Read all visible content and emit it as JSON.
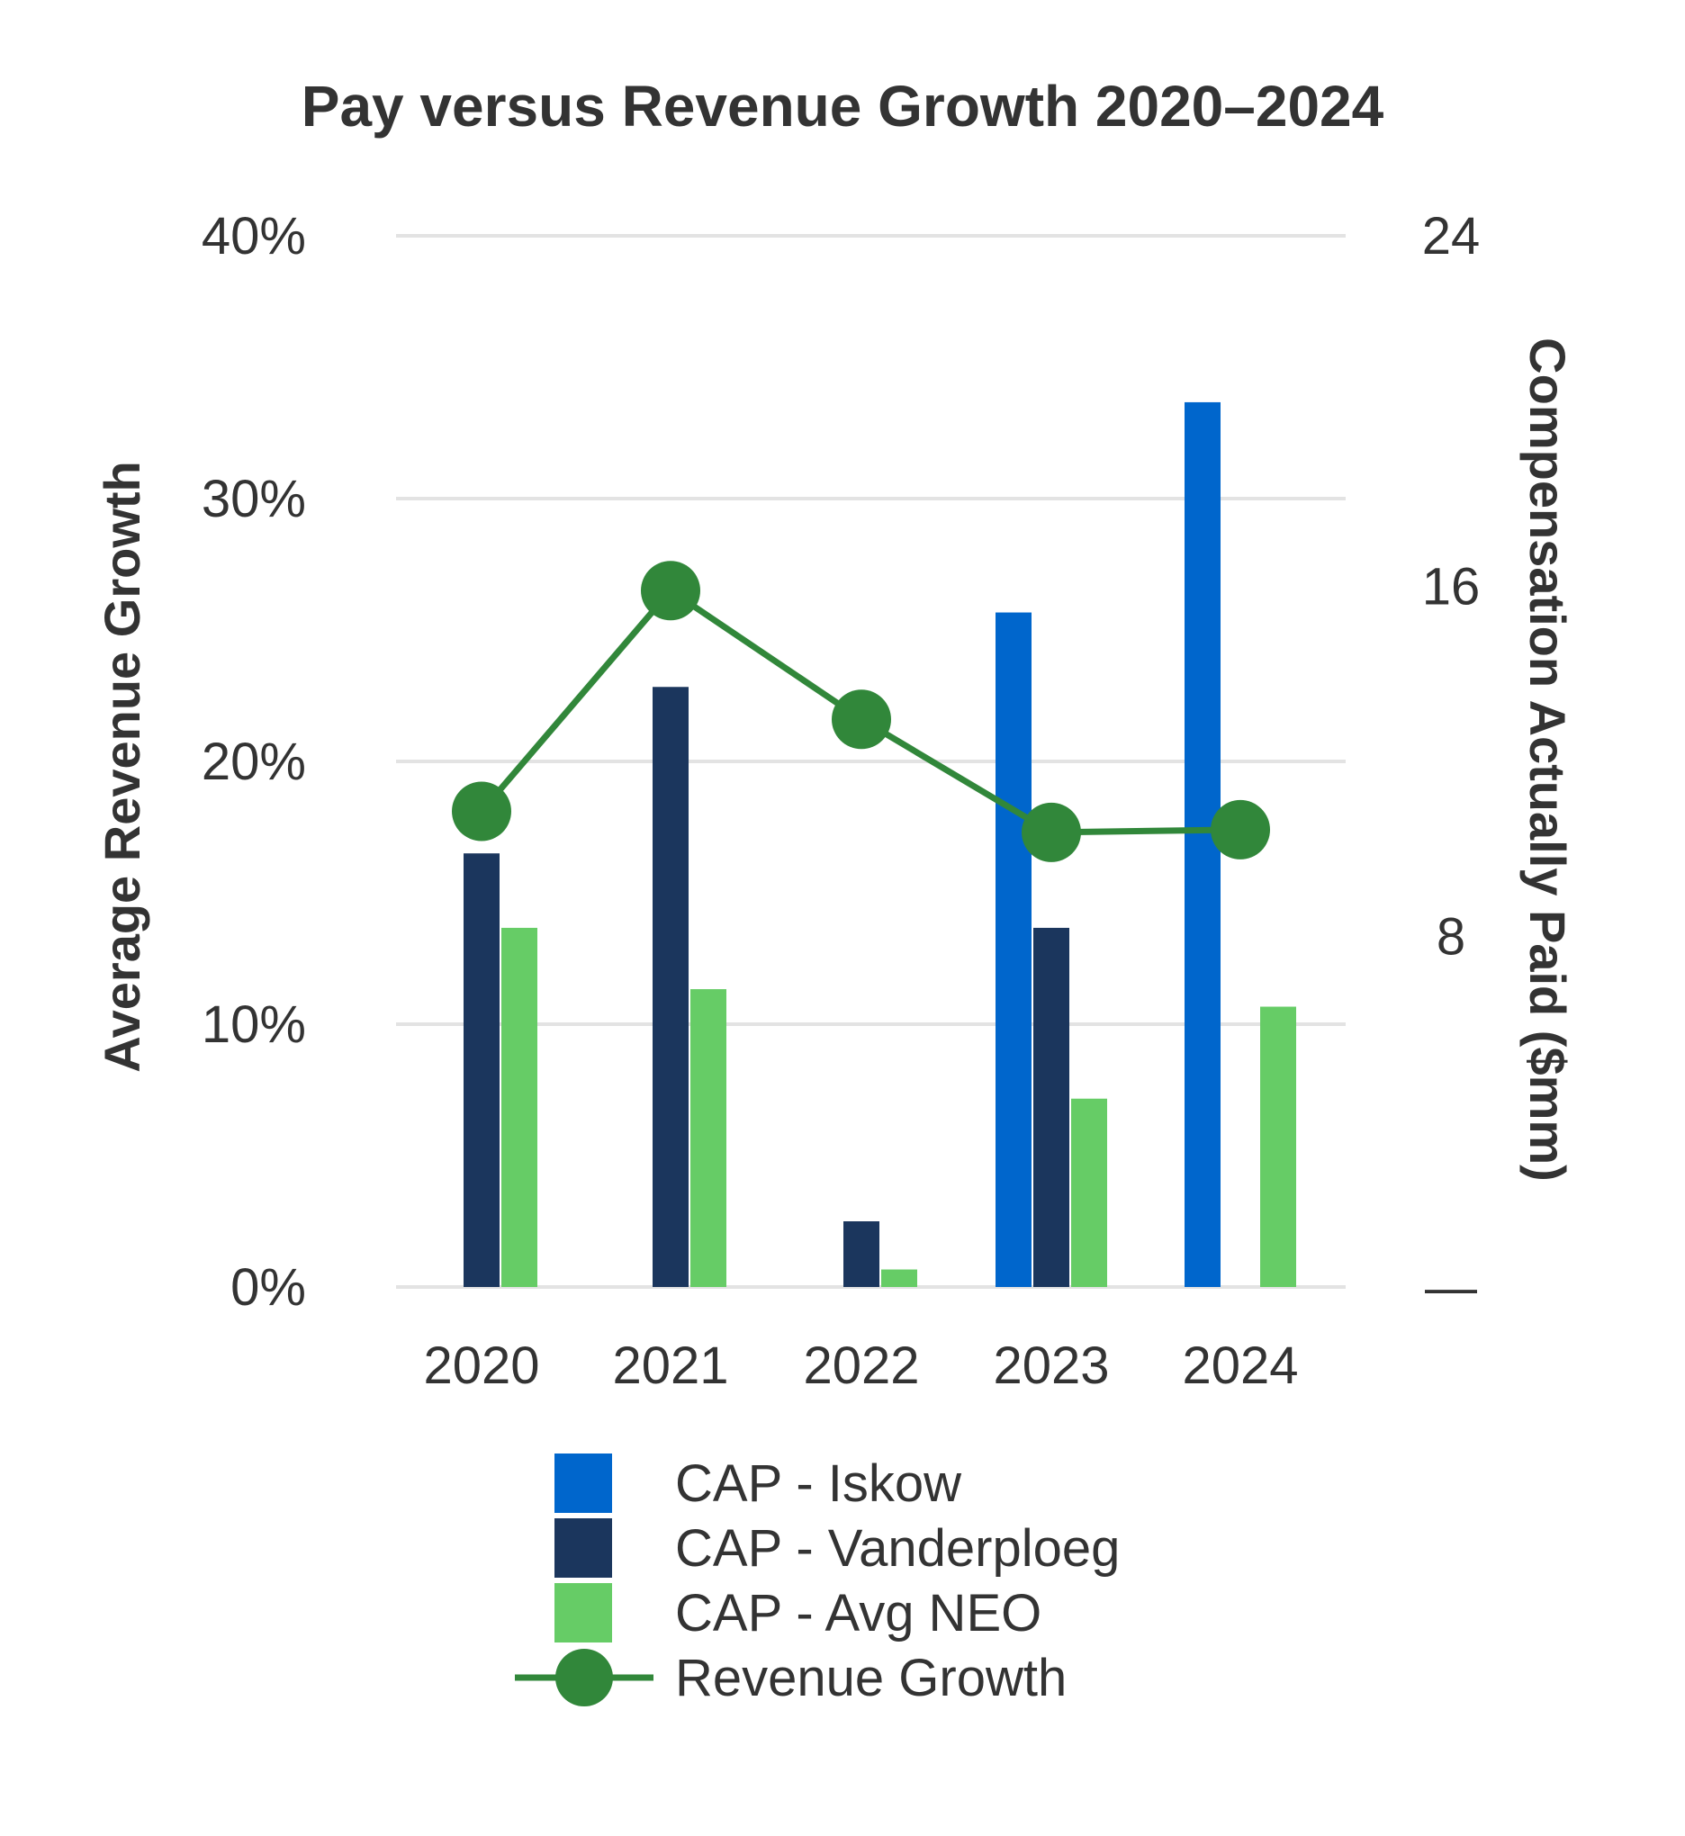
{
  "chart_data": {
    "type": "bar",
    "title": "Pay versus Revenue Growth 2020–2024",
    "categories": [
      "2020",
      "2021",
      "2022",
      "2023",
      "2024"
    ],
    "y_left": {
      "label": "Average Revenue Growth",
      "ticks": [
        "0%",
        "10%",
        "20%",
        "30%",
        "40%"
      ],
      "tick_values": [
        0,
        10,
        20,
        30,
        40
      ],
      "ylim": [
        0,
        40
      ]
    },
    "y_right": {
      "label": "Compensation Actually Paid ($mm)",
      "ticks": [
        "—",
        "8",
        "16",
        "24"
      ],
      "tick_values": [
        0,
        8,
        16,
        24
      ],
      "ylim": [
        0,
        24
      ]
    },
    "bar_series": [
      {
        "name": "CAP - Iskow",
        "color": "#0066CC",
        "values": [
          0,
          0,
          0,
          15.4,
          20.2
        ]
      },
      {
        "name": "CAP - Vanderploeg",
        "color": "#1B365D",
        "values": [
          9.9,
          13.7,
          1.5,
          8.2,
          0
        ]
      },
      {
        "name": "CAP - Avg NEO",
        "color": "#66CC66",
        "values": [
          8.2,
          6.8,
          0.4,
          4.3,
          6.4
        ]
      }
    ],
    "line_series": {
      "name": "Revenue Growth",
      "color": "#31873A",
      "values": [
        18.1,
        26.5,
        21.6,
        17.3,
        17.4
      ]
    },
    "legend": {
      "position": "bottom",
      "entries": [
        "CAP - Iskow",
        "CAP - Vanderploeg",
        "CAP - Avg NEO",
        "Revenue Growth"
      ]
    },
    "grid": true
  }
}
